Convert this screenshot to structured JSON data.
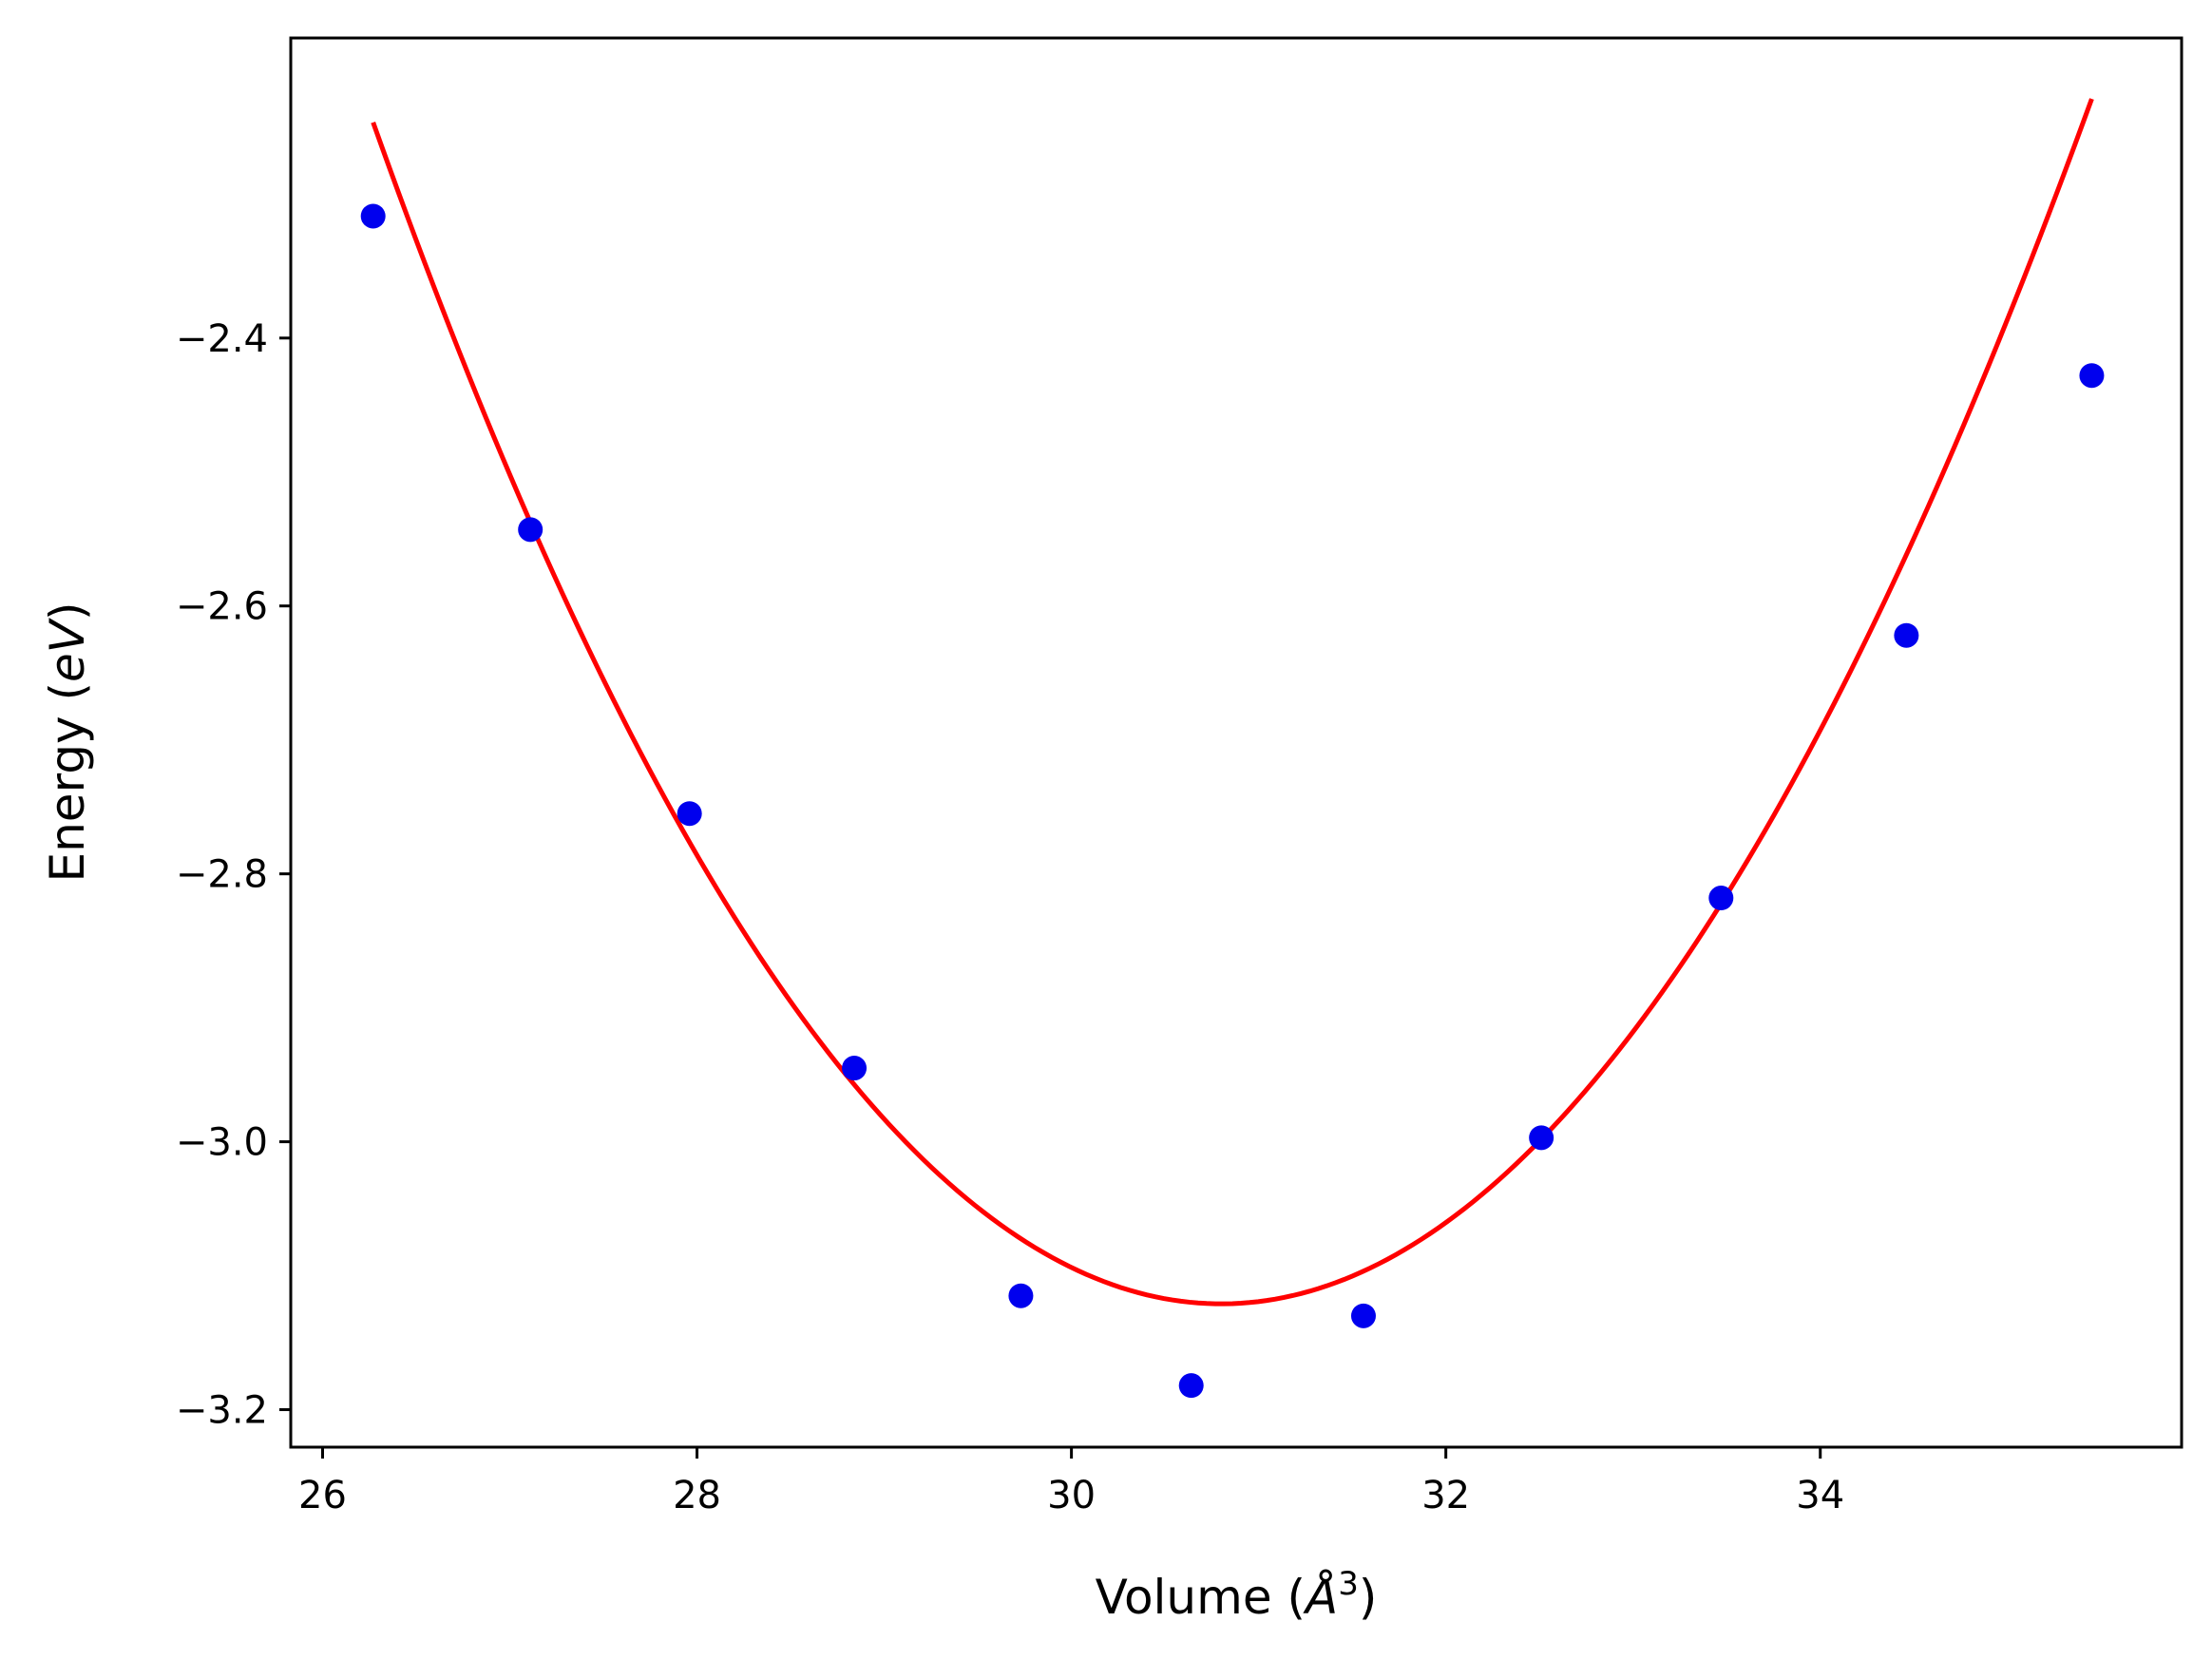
{
  "chart_data": {
    "type": "scatter",
    "title": "",
    "xlabel": {
      "prefix": "Volume (",
      "italic": "Å",
      "superscript": "3",
      "suffix": ")"
    },
    "ylabel": {
      "prefix": "Energy (",
      "italic": "eV",
      "suffix": ")"
    },
    "xlim": [
      25.83,
      35.93
    ],
    "ylim": [
      -3.228,
      -2.176
    ],
    "xticks": [
      {
        "value": 26,
        "label": "26"
      },
      {
        "value": 28,
        "label": "28"
      },
      {
        "value": 30,
        "label": "30"
      },
      {
        "value": 32,
        "label": "32"
      },
      {
        "value": 34,
        "label": "34"
      }
    ],
    "yticks": [
      {
        "value": -3.2,
        "label": "−3.2"
      },
      {
        "value": -3.0,
        "label": "−3.0"
      },
      {
        "value": -2.8,
        "label": "−2.8"
      },
      {
        "value": -2.6,
        "label": "−2.6"
      },
      {
        "value": -2.4,
        "label": "−2.4"
      }
    ],
    "grid": false,
    "legend": "none",
    "points": {
      "color": "#0000ee",
      "x": [
        26.27,
        27.11,
        27.96,
        28.84,
        29.73,
        30.64,
        31.56,
        32.51,
        33.47,
        34.46,
        35.45
      ],
      "y": [
        -2.309,
        -2.543,
        -2.755,
        -2.945,
        -3.115,
        -3.182,
        -3.13,
        -2.997,
        -2.818,
        -2.622,
        -2.428
      ]
    },
    "fit": {
      "color": "#ff0000",
      "xmin": 26.27,
      "xmax": 35.45,
      "vmin": 30.8,
      "emin": -3.121,
      "coef2": 0.0423,
      "coef3": -0.00015
    }
  }
}
